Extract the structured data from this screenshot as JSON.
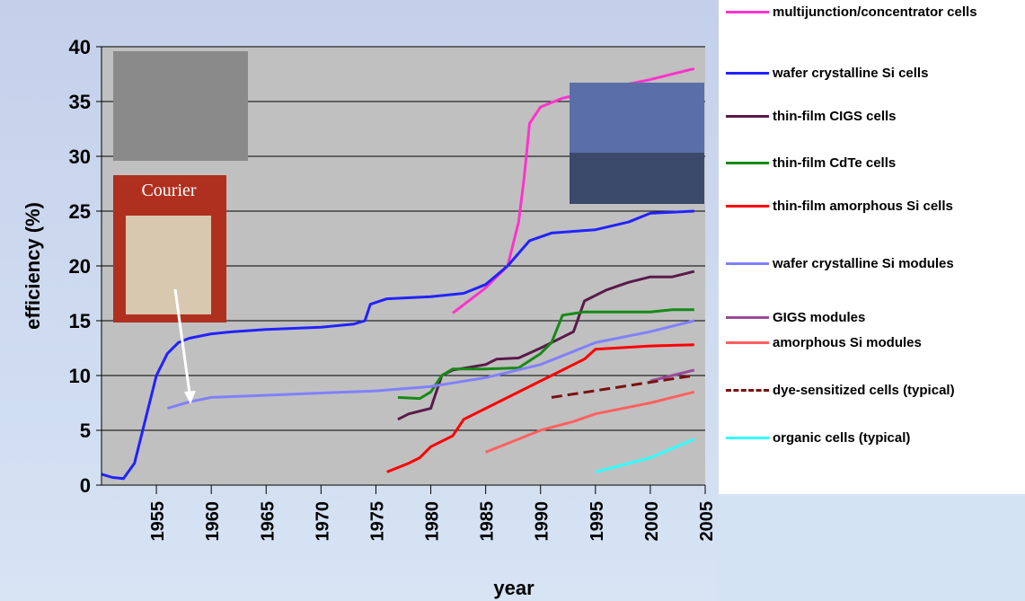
{
  "chart_data": {
    "type": "line",
    "xlabel": "year",
    "ylabel": "efficiency (%)",
    "annotations": [
      "Courier"
    ],
    "xlim": [
      1950,
      2005
    ],
    "xticks": [
      1955,
      1960,
      1965,
      1970,
      1975,
      1980,
      1985,
      1990,
      1995,
      2000,
      2005
    ],
    "ylim": [
      0,
      40
    ],
    "yticks": [
      0,
      5,
      10,
      15,
      20,
      25,
      30,
      35,
      40
    ],
    "grid": true,
    "legend": "right",
    "series": [
      {
        "name": "multijunction/concentrator cells",
        "color": "#ff33cc",
        "x": [
          1982,
          1985,
          1987,
          1988,
          1988.5,
          1989,
          1990,
          1992,
          1995,
          2000,
          2004
        ],
        "values": [
          15.7,
          18,
          20,
          24,
          28,
          33,
          34.5,
          35.3,
          36,
          37,
          38
        ]
      },
      {
        "name": "wafer crystalline Si cells",
        "color": "#2222ff",
        "x": [
          1950,
          1951,
          1952,
          1953,
          1954,
          1955,
          1956,
          1957,
          1958,
          1960,
          1962,
          1965,
          1970,
          1973,
          1974,
          1974.5,
          1976,
          1980,
          1983,
          1985,
          1987,
          1989,
          1991,
          1995,
          1998,
          2000,
          2004
        ],
        "values": [
          1.0,
          0.7,
          0.6,
          2,
          6,
          10,
          12,
          13,
          13.4,
          13.8,
          14,
          14.2,
          14.4,
          14.7,
          15,
          16.5,
          17,
          17.2,
          17.5,
          18.3,
          20,
          22.3,
          23,
          23.3,
          24,
          24.8,
          25
        ]
      },
      {
        "name": "thin-film CIGS cells",
        "color": "#5a1a4a",
        "x": [
          1977,
          1978,
          1980,
          1981,
          1982,
          1985,
          1986,
          1988,
          1990,
          1992,
          1993,
          1994,
          1996,
          1998,
          2000,
          2002,
          2004
        ],
        "values": [
          6,
          6.5,
          7,
          10,
          10.5,
          11,
          11.5,
          11.6,
          12.5,
          13.5,
          14,
          16.8,
          17.8,
          18.5,
          19,
          19,
          19.5
        ]
      },
      {
        "name": "thin-film CdTe cells",
        "color": "#178a17",
        "x": [
          1977,
          1979,
          1980,
          1981,
          1982,
          1985,
          1988,
          1990,
          1991,
          1992,
          1994,
          2000,
          2002,
          2004
        ],
        "values": [
          8,
          7.9,
          8.5,
          10,
          10.6,
          10.6,
          10.7,
          12,
          13,
          15.5,
          15.8,
          15.8,
          16,
          16
        ]
      },
      {
        "name": "thin-film amorphous Si cells",
        "color": "#ff0000",
        "x": [
          1976,
          1978,
          1979,
          1980,
          1982,
          1983,
          1985,
          1990,
          1992,
          1994,
          1995,
          2000,
          2004
        ],
        "values": [
          1.2,
          2,
          2.5,
          3.5,
          4.5,
          6,
          7,
          9.5,
          10.5,
          11.5,
          12.4,
          12.7,
          12.8
        ]
      },
      {
        "name": "wafer crystalline Si modules",
        "color": "#8080ff",
        "x": [
          1956,
          1958,
          1960,
          1965,
          1970,
          1975,
          1980,
          1985,
          1990,
          1995,
          2000,
          2004
        ],
        "values": [
          7,
          7.6,
          8,
          8.2,
          8.4,
          8.6,
          9,
          9.8,
          11,
          13,
          14,
          15
        ]
      },
      {
        "name": "GIGS modules",
        "color": "#9a4a9a",
        "x": [
          2000,
          2002,
          2004
        ],
        "values": [
          9.5,
          10,
          10.5
        ]
      },
      {
        "name": "amorphous Si modules",
        "color": "#ff6060",
        "x": [
          1985,
          1990,
          1993,
          1995,
          2000,
          2004
        ],
        "values": [
          3,
          5,
          5.8,
          6.5,
          7.5,
          8.5
        ]
      },
      {
        "name": "dye-sensitized cells (typical)",
        "color": "#7a1010",
        "line_style": "dashed",
        "x": [
          1991,
          2004
        ],
        "values": [
          8,
          10
        ]
      },
      {
        "name": "organic cells (typical)",
        "color": "#33ffff",
        "x": [
          1995,
          2000,
          2004
        ],
        "values": [
          1.2,
          2.5,
          4.2
        ]
      }
    ]
  }
}
